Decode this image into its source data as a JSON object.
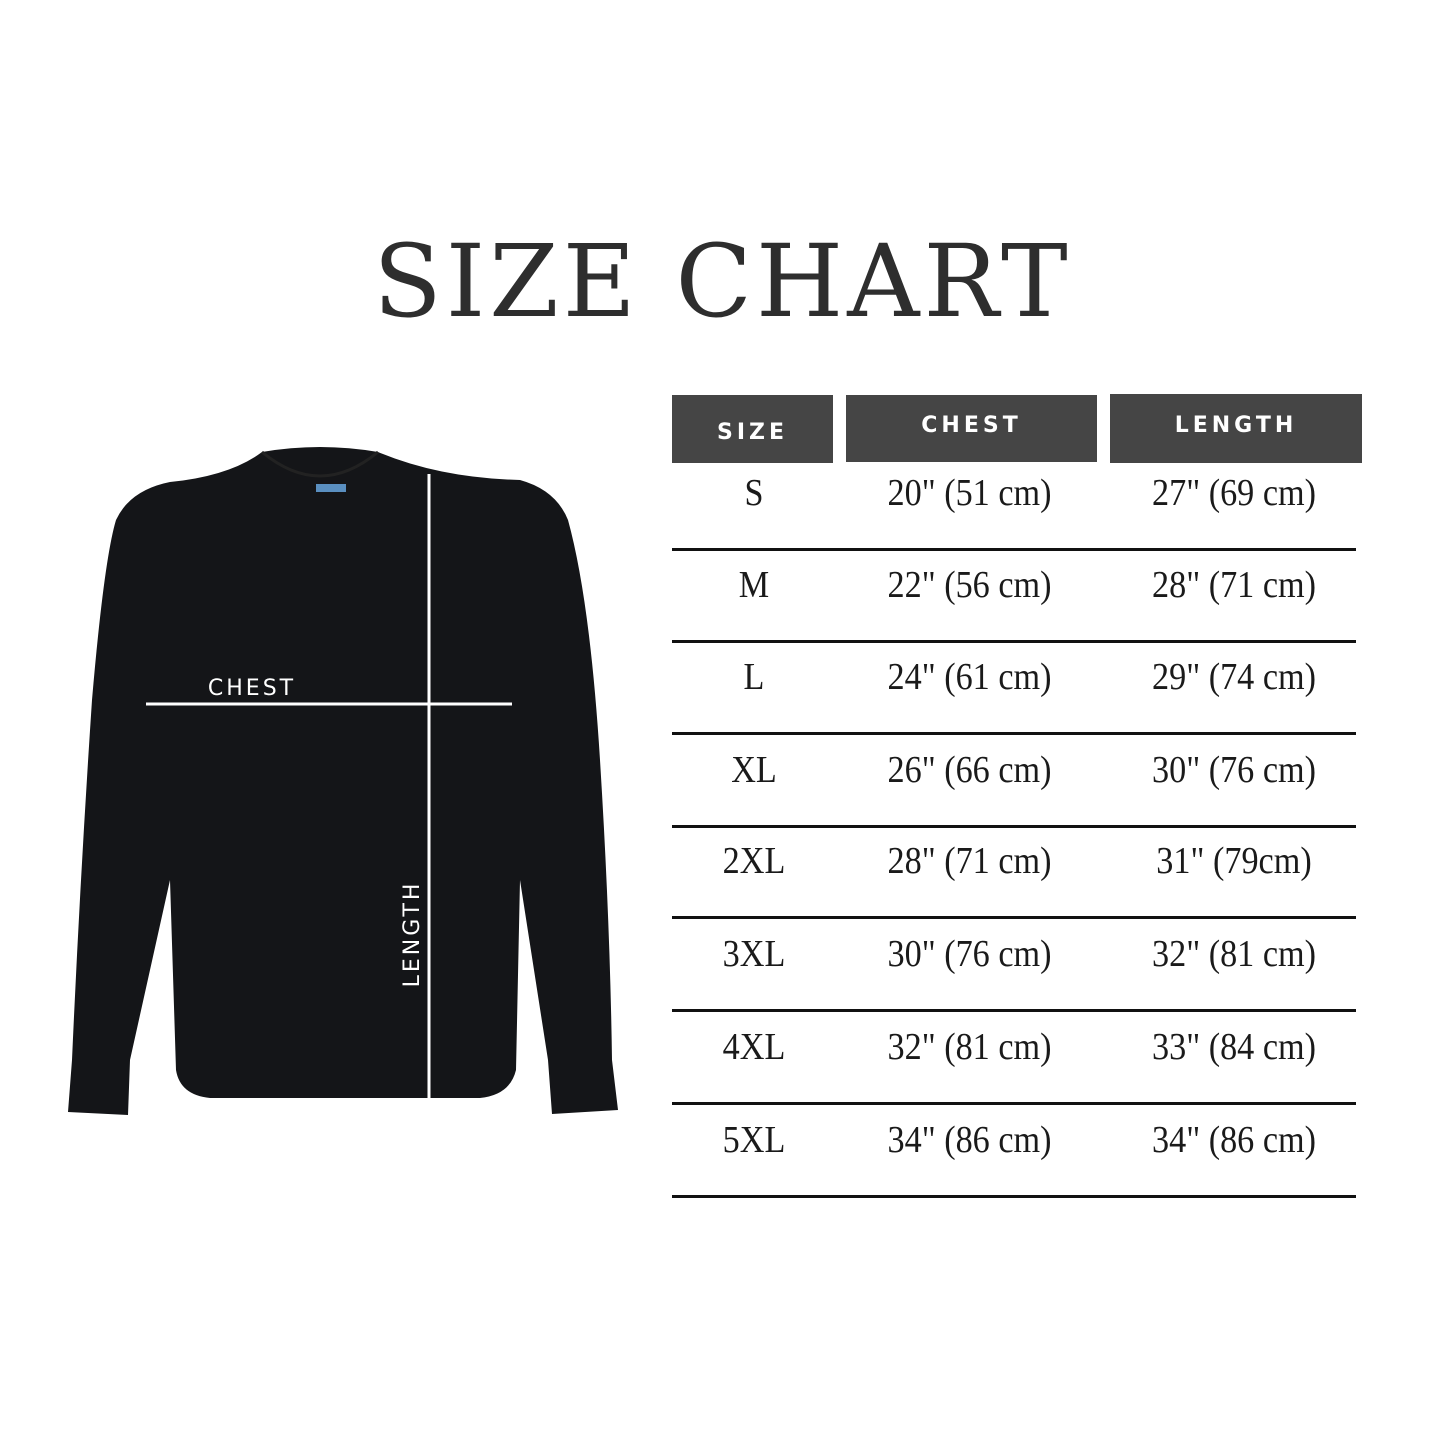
{
  "title": "SIZE CHART",
  "diagram": {
    "chest_label": "CHEST",
    "length_label": "LENGTH",
    "garment": "black crewneck sweatshirt"
  },
  "table": {
    "headers": [
      "SIZE",
      "CHEST",
      "LENGTH"
    ],
    "rows": [
      {
        "size": "S",
        "chest": "20\" (51 cm)",
        "length": "27\" (69 cm)"
      },
      {
        "size": "M",
        "chest": "22\" (56 cm)",
        "length": "28\" (71 cm)"
      },
      {
        "size": "L",
        "chest": "24\" (61 cm)",
        "length": "29\" (74 cm)"
      },
      {
        "size": "XL",
        "chest": "26\" (66 cm)",
        "length": "30\" (76 cm)"
      },
      {
        "size": "2XL",
        "chest": "28\" (71 cm)",
        "length": "31\" (79cm)"
      },
      {
        "size": "3XL",
        "chest": "30\" (76 cm)",
        "length": "32\" (81 cm)"
      },
      {
        "size": "4XL",
        "chest": "32\" (81 cm)",
        "length": "33\" (84 cm)"
      },
      {
        "size": "5XL",
        "chest": "34\" (86 cm)",
        "length": "34\" (86 cm)"
      }
    ]
  },
  "colors": {
    "header_bg": "#454545",
    "shirt": "#141518",
    "text": "#1a1a1a"
  }
}
